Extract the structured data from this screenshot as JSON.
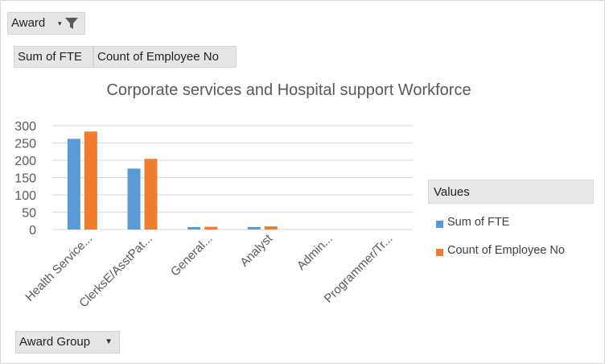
{
  "filter": {
    "field": "Award"
  },
  "value_fields": [
    "Sum of FTE",
    "Count of Employee No"
  ],
  "axis_field": "Award Group",
  "legend": {
    "title": "Values"
  },
  "colors": {
    "series_1": "#5B9BD5",
    "series_2": "#ED7D31",
    "gridline": "#d9d9d9",
    "axis_text": "#595959"
  },
  "icons": {
    "filter": "funnel-icon",
    "dropdown": "dropdown-arrow-icon"
  },
  "chart_data": {
    "type": "bar",
    "title": "Corporate services and Hospital support Workforce",
    "categories": [
      "Health Service...",
      "ClerksE/AsstPat...",
      "General...",
      "Analyst",
      "Admin...",
      "Programmer/Tr..."
    ],
    "series": [
      {
        "name": "Sum of FTE",
        "values": [
          262,
          176,
          7,
          7,
          0,
          0
        ]
      },
      {
        "name": "Count of Employee No",
        "values": [
          283,
          204,
          8,
          9,
          0,
          0
        ]
      }
    ],
    "ylim": [
      0,
      300
    ],
    "yticks": [
      0,
      50,
      100,
      150,
      200,
      250,
      300
    ],
    "grid": true,
    "legend_position": "right"
  }
}
